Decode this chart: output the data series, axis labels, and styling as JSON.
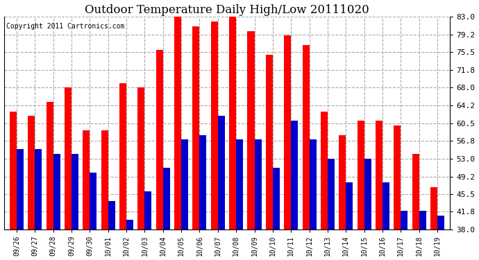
{
  "title": "Outdoor Temperature Daily High/Low 20111020",
  "copyright": "Copyright 2011 Cartronics.com",
  "labels": [
    "09/26",
    "09/27",
    "09/28",
    "09/29",
    "09/30",
    "10/01",
    "10/02",
    "10/03",
    "10/04",
    "10/05",
    "10/06",
    "10/07",
    "10/08",
    "10/09",
    "10/10",
    "10/11",
    "10/12",
    "10/13",
    "10/14",
    "10/15",
    "10/16",
    "10/17",
    "10/18",
    "10/19"
  ],
  "highs": [
    63,
    62,
    65,
    68,
    59,
    59,
    69,
    68,
    76,
    83,
    81,
    82,
    83,
    80,
    75,
    79,
    77,
    63,
    58,
    61,
    61,
    60,
    54,
    47
  ],
  "lows": [
    55,
    55,
    54,
    54,
    50,
    44,
    40,
    46,
    51,
    57,
    58,
    62,
    57,
    57,
    51,
    61,
    57,
    53,
    48,
    53,
    48,
    42,
    42,
    41
  ],
  "high_color": "#ff0000",
  "low_color": "#0000cc",
  "bg_color": "#ffffff",
  "grid_color": "#aaaaaa",
  "yticks": [
    38.0,
    41.8,
    45.5,
    49.2,
    53.0,
    56.8,
    60.5,
    64.2,
    68.0,
    71.8,
    75.5,
    79.2,
    83.0
  ],
  "ylim": [
    38.0,
    83.0
  ],
  "ybase": 38.0,
  "bar_width": 0.38
}
